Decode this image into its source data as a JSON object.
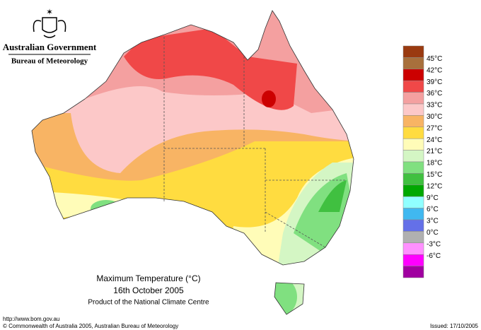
{
  "header": {
    "government": "Australian Government",
    "bureau": "Bureau of Meteorology"
  },
  "legend": {
    "labels": [
      "45°C",
      "42°C",
      "39°C",
      "36°C",
      "33°C",
      "30°C",
      "27°C",
      "24°C",
      "21°C",
      "18°C",
      "15°C",
      "12°C",
      "9°C",
      "6°C",
      "3°C",
      "0°C",
      "-3°C",
      "-6°C"
    ],
    "colors": [
      "#9a3a10",
      "#a8703c",
      "#cc0000",
      "#f04848",
      "#f4a0a0",
      "#fcc8c8",
      "#f8b464",
      "#ffdc40",
      "#fffcb8",
      "#d4f6c4",
      "#80e080",
      "#40c040",
      "#00a800",
      "#90ffff",
      "#40b8f0",
      "#6470e8",
      "#b0b0b0",
      "#ff90ff",
      "#ff00ff",
      "#a000a0"
    ]
  },
  "caption": {
    "title": "Maximum Temperature (°C)",
    "date": "16th October 2005",
    "product": "Product of the National Climate Centre"
  },
  "footer": {
    "url": "http://www.bom.gov.au",
    "copyright": "© Commonwealth of Australia 2005, Australian Bureau of Meteorology",
    "issued": "Issued: 17/10/2005"
  }
}
